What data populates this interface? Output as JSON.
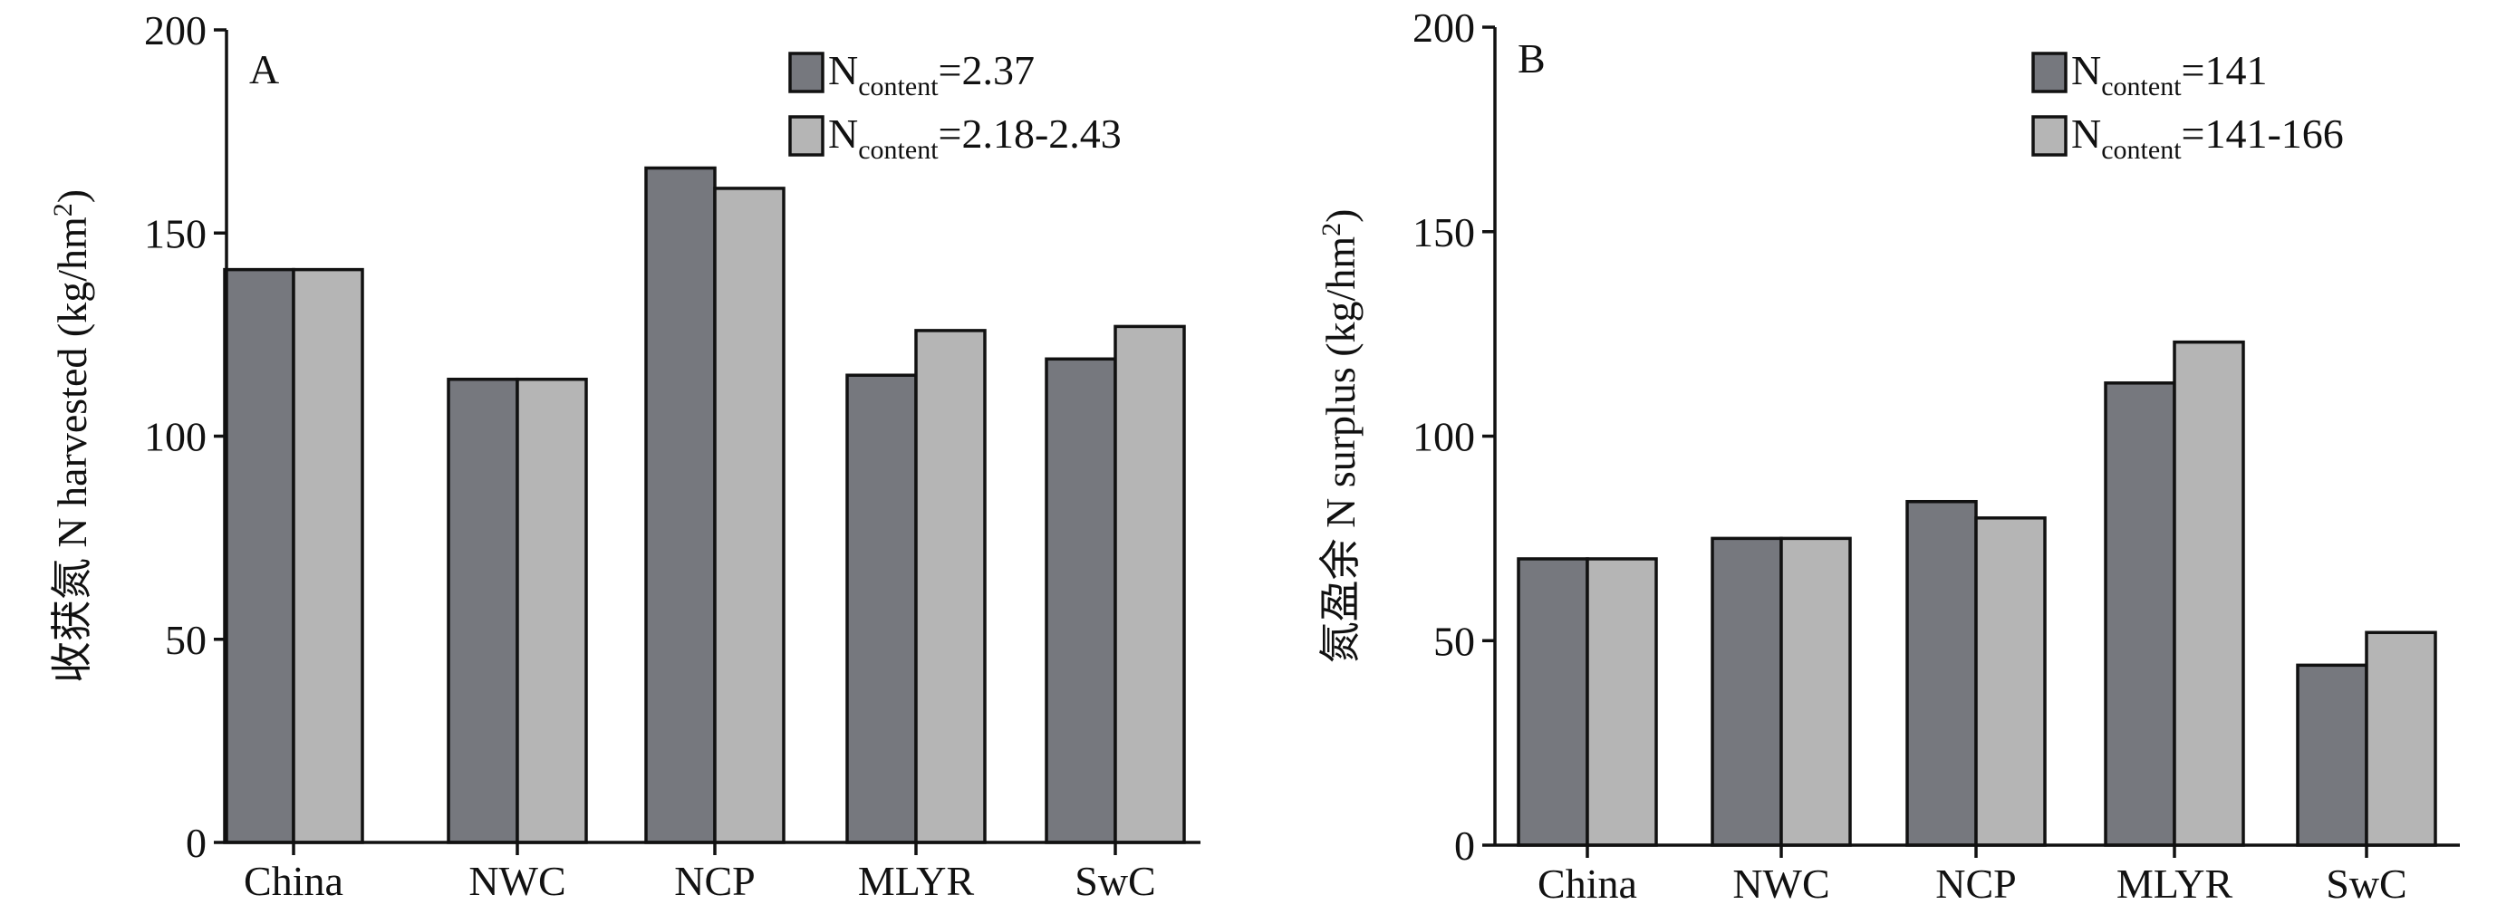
{
  "chart_data": [
    {
      "type": "bar",
      "panel_label": "A",
      "ylabel": "收获氮 N harvested (kg/hm²)",
      "ylabel_parts": {
        "text": "收获氮 N harvested (kg/hm",
        "sup": "2",
        "close": ")"
      },
      "ylim": [
        0,
        200
      ],
      "yticks": [
        0,
        50,
        100,
        150,
        200
      ],
      "categories": [
        "China",
        "NWC",
        "NCP",
        "MLYR",
        "SwC"
      ],
      "series": [
        {
          "name": "Ncontent=2.37",
          "legend": {
            "main": "N",
            "sub": "content",
            "suffix": "=2.37"
          },
          "color": "#76787e",
          "values": [
            141,
            114,
            166,
            115,
            119
          ]
        },
        {
          "name": "Ncontent=2.18-2.43",
          "legend": {
            "main": "N",
            "sub": "content",
            "suffix": "=2.18-2.43"
          },
          "color": "#b5b5b5",
          "values": [
            141,
            114,
            161,
            126,
            127
          ]
        }
      ],
      "legend_position": "top-right",
      "grid": false
    },
    {
      "type": "bar",
      "panel_label": "B",
      "ylabel": "氮盈余 N surplus (kg/hm²)",
      "ylabel_parts": {
        "text": "氮盈余 N surplus (kg/hm",
        "sup": "2",
        "close": ")"
      },
      "ylim": [
        0,
        200
      ],
      "yticks": [
        0,
        50,
        100,
        150,
        200
      ],
      "categories": [
        "China",
        "NWC",
        "NCP",
        "MLYR",
        "SwC"
      ],
      "series": [
        {
          "name": "Ncontent=141",
          "legend": {
            "main": "N",
            "sub": "content",
            "suffix": "=141"
          },
          "color": "#76787e",
          "values": [
            70,
            75,
            84,
            113,
            44
          ]
        },
        {
          "name": "Ncontent=141-166",
          "legend": {
            "main": "N",
            "sub": "content",
            "suffix": "=141-166"
          },
          "color": "#b5b5b5",
          "values": [
            70,
            75,
            80,
            123,
            52
          ]
        }
      ],
      "legend_position": "top-right",
      "grid": false
    }
  ]
}
